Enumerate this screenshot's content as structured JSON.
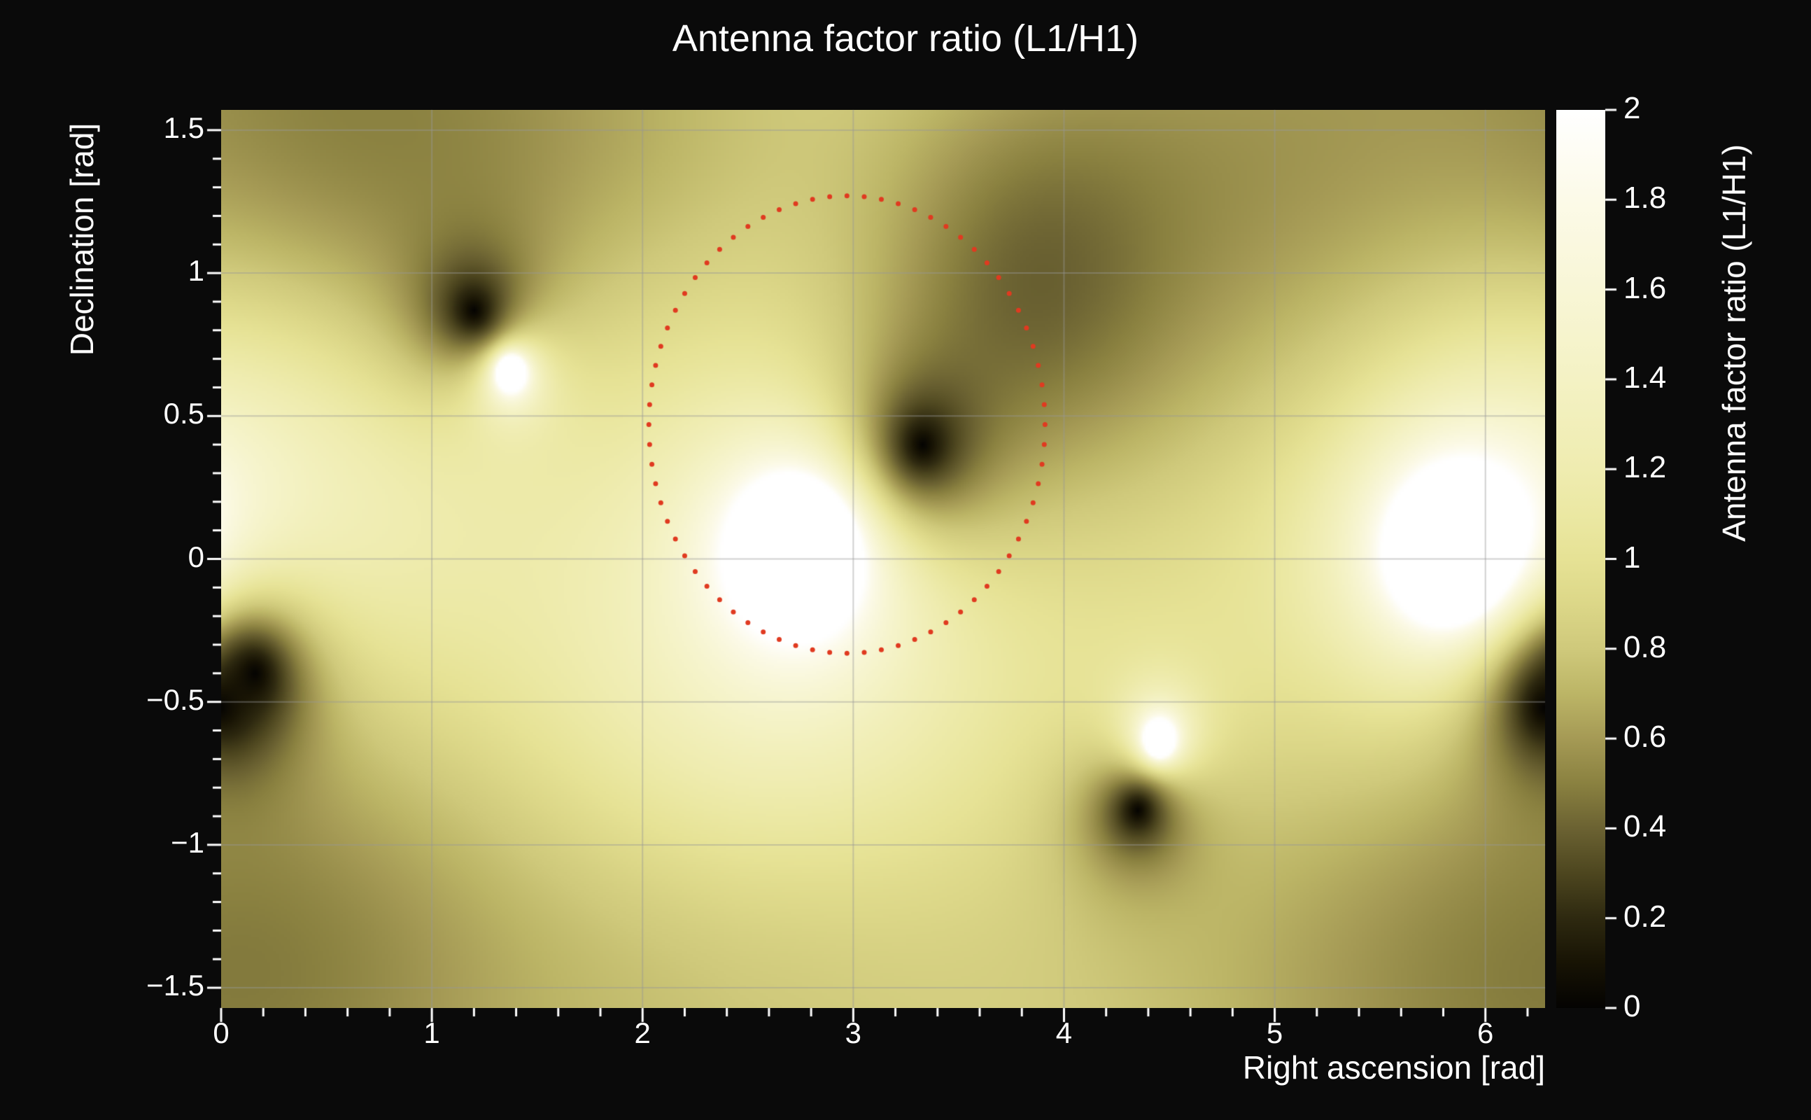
{
  "figure": {
    "background": "#0a0a0a",
    "text_color": "#ffffff"
  },
  "chart_data": {
    "type": "heatmap",
    "title": "Antenna factor ratio (L1/H1)",
    "xlabel": "Right ascension [rad]",
    "ylabel": "Declination [rad]",
    "zlabel": "Antenna factor ratio (L1/H1)",
    "xlim": [
      0,
      6.2832
    ],
    "ylim": [
      -1.5708,
      1.5708
    ],
    "zlim": [
      0,
      2
    ],
    "xticks": {
      "values": [
        0,
        1,
        2,
        3,
        4,
        5,
        6
      ],
      "labels": [
        "0",
        "1",
        "2",
        "3",
        "4",
        "5",
        "6"
      ]
    },
    "yticks": {
      "values": [
        -1.5,
        -1,
        -0.5,
        0,
        0.5,
        1,
        1.5
      ],
      "labels": [
        "−1.5",
        "−1",
        "−0.5",
        "0",
        "0.5",
        "1",
        "1.5"
      ]
    },
    "zticks": {
      "values": [
        0,
        0.2,
        0.4,
        0.6,
        0.8,
        1,
        1.2,
        1.4,
        1.6,
        1.8,
        2
      ],
      "labels": [
        "0",
        "0.2",
        "0.4",
        "0.6",
        "0.8",
        "1",
        "1.2",
        "1.4",
        "1.6",
        "1.8",
        "2"
      ]
    },
    "grid": {
      "show": true,
      "color": "#969696",
      "alpha": 0.45
    },
    "colormap": [
      [
        0.0,
        "#040302"
      ],
      [
        0.1,
        "#171304"
      ],
      [
        0.2,
        "#2e2910"
      ],
      [
        0.3,
        "#4d461f"
      ],
      [
        0.4,
        "#6b6232"
      ],
      [
        0.5,
        "#8a8140"
      ],
      [
        0.6,
        "#a59a55"
      ],
      [
        0.7,
        "#bcb566"
      ],
      [
        0.8,
        "#cfc97b"
      ],
      [
        0.9,
        "#dcd788"
      ],
      [
        1.0,
        "#e6e295"
      ],
      [
        1.1,
        "#ebe8a3"
      ],
      [
        1.2,
        "#efecb0"
      ],
      [
        1.4,
        "#f4f2c4"
      ],
      [
        1.6,
        "#f8f6d6"
      ],
      [
        1.8,
        "#fcfae8"
      ],
      [
        2.0,
        "#ffffff"
      ]
    ],
    "field": {
      "base": 1.05,
      "dark": [
        {
          "x": 1.2,
          "y": 0.87,
          "sx": 0.28,
          "sy": 0.24,
          "s": 1
        },
        {
          "x": 3.33,
          "y": 0.4,
          "sx": 0.34,
          "sy": 0.3,
          "s": 1
        },
        {
          "x": 0.16,
          "y": -0.4,
          "sx": 0.26,
          "sy": 0.24,
          "s": 1
        },
        {
          "x": 4.35,
          "y": -0.88,
          "sx": 0.26,
          "sy": 0.22,
          "s": 1
        },
        {
          "x": 6.28,
          "y": -0.52,
          "sx": 0.28,
          "sy": 0.26,
          "s": 1
        }
      ],
      "bright": [
        {
          "x": 1.37,
          "y": 0.66,
          "sx": 0.2,
          "sy": 0.18,
          "s": 0.85
        },
        {
          "x": 2.76,
          "y": 0.05,
          "sx": 0.5,
          "sy": 0.42,
          "s": 0.95
        },
        {
          "x": 4.45,
          "y": -0.64,
          "sx": 0.22,
          "sy": 0.2,
          "s": 0.8
        },
        {
          "x": 5.85,
          "y": 0.02,
          "sx": 0.55,
          "sy": 0.48,
          "s": 0.95
        }
      ],
      "shade_dark": [
        {
          "x": 0.5,
          "y": 1.5,
          "sx": 1.0,
          "sy": 0.7,
          "s": 0.45
        },
        {
          "x": 4.9,
          "y": 1.35,
          "sx": 1.1,
          "sy": 0.8,
          "s": 0.4
        },
        {
          "x": 3.85,
          "y": 0.95,
          "sx": 0.55,
          "sy": 0.5,
          "s": 0.5
        },
        {
          "x": 0.3,
          "y": -1.4,
          "sx": 0.9,
          "sy": 0.7,
          "s": 0.35
        },
        {
          "x": 5.6,
          "y": -1.5,
          "sx": 1.2,
          "sy": 0.7,
          "s": 0.35
        },
        {
          "x": 2.3,
          "y": -1.55,
          "sx": 1.2,
          "sy": 0.6,
          "s": 0.25
        },
        {
          "x": 1.8,
          "y": 1.55,
          "sx": 0.9,
          "sy": 0.5,
          "s": 0.25
        }
      ],
      "shade_bright": [
        {
          "x": 0.4,
          "y": 0.3,
          "sx": 0.7,
          "sy": 0.5,
          "s": 0.3
        },
        {
          "x": 2.5,
          "y": -0.55,
          "sx": 0.8,
          "sy": 0.5,
          "s": 0.25
        },
        {
          "x": 6.1,
          "y": 0.9,
          "sx": 0.6,
          "sy": 0.5,
          "s": 0.2
        }
      ]
    },
    "annotation": {
      "type": "dotted-ellipse",
      "color": "#e03a20",
      "cx": 2.97,
      "cy": 0.47,
      "rx": 0.94,
      "ry": 0.8,
      "dots": 72,
      "dot_radius": 3.5
    }
  }
}
